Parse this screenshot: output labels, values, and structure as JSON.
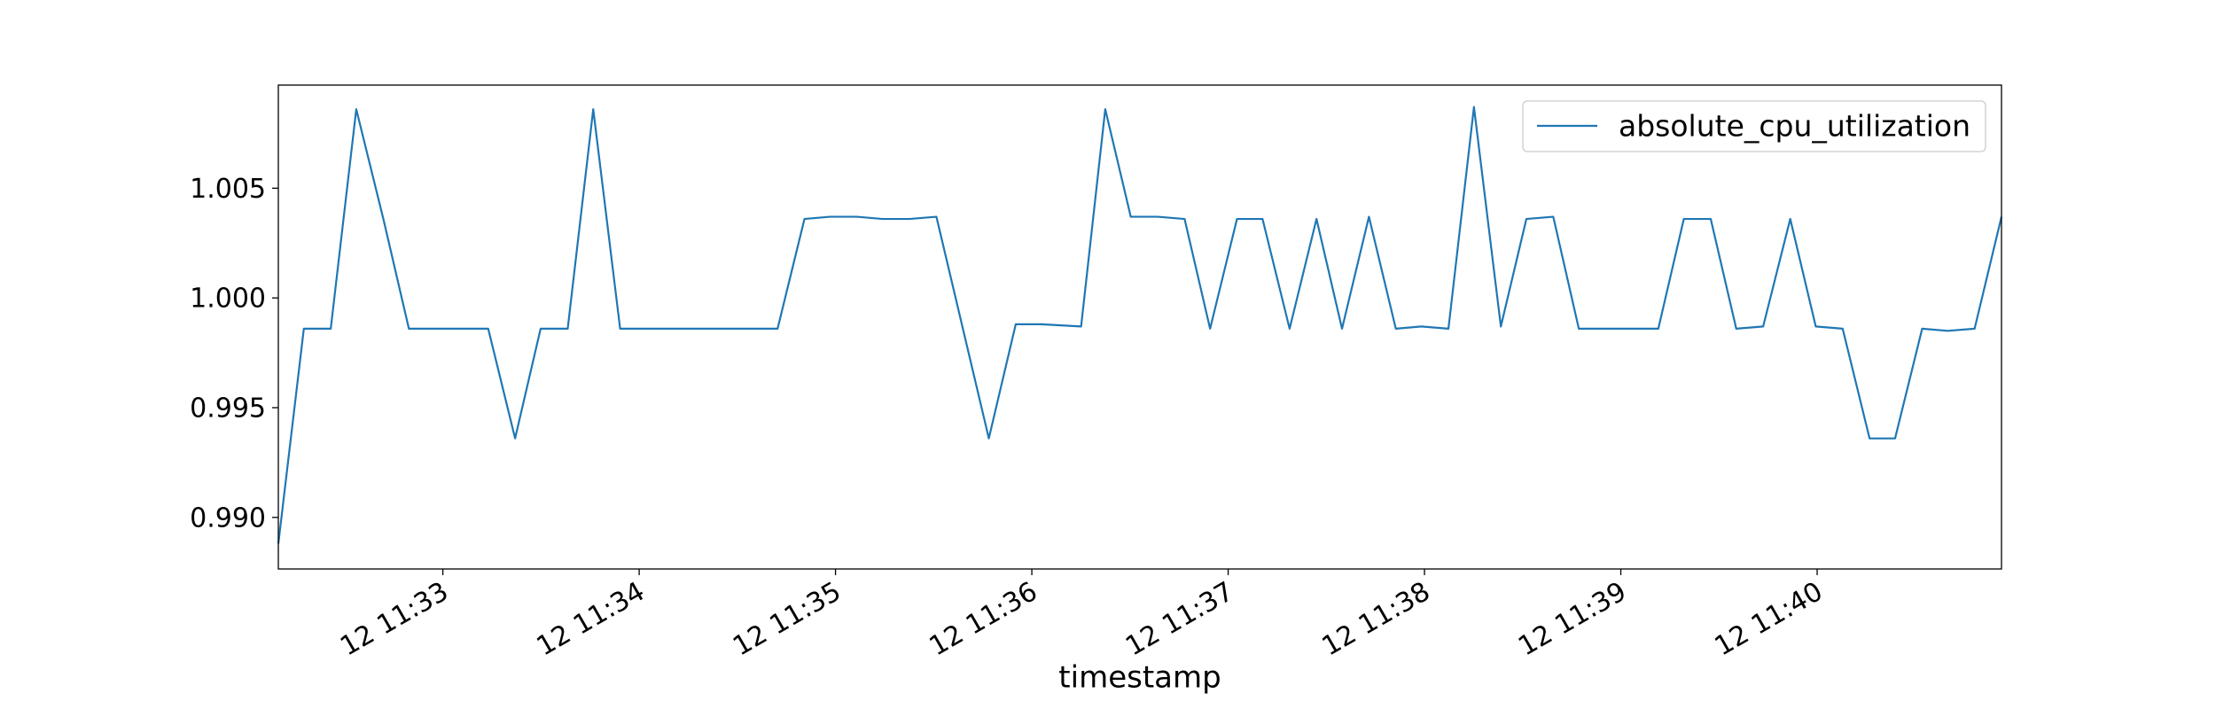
{
  "chart_data": {
    "type": "line",
    "xlabel": "timestamp",
    "x": [
      692.162,
      692.292,
      692.429,
      692.559,
      692.697,
      692.827,
      692.964,
      693.101,
      693.231,
      693.368,
      693.498,
      693.636,
      693.766,
      693.903,
      694.033,
      694.17,
      694.3,
      694.438,
      694.568,
      694.705,
      694.842,
      694.972,
      695.109,
      695.239,
      695.377,
      695.514,
      695.781,
      695.918,
      696.048,
      696.251,
      696.374,
      696.504,
      696.641,
      696.778,
      696.908,
      697.045,
      697.175,
      697.313,
      697.45,
      697.58,
      697.717,
      697.854,
      697.984,
      698.122,
      698.252,
      698.389,
      698.519,
      698.656,
      698.786,
      698.924,
      699.054,
      699.191,
      699.321,
      699.458,
      699.588,
      699.725,
      699.863,
      699.993,
      700.13,
      700.267,
      700.397,
      700.535,
      700.665,
      700.802,
      700.939
    ],
    "series": [
      {
        "name": "absolute_cpu_utilization",
        "color": "#1f77b4",
        "values": [
          0.9888,
          0.9986,
          0.9986,
          1.0086,
          1.0036,
          0.9986,
          0.9986,
          0.9986,
          0.9986,
          0.9936,
          0.9986,
          0.9986,
          1.0086,
          0.9986,
          0.9986,
          0.9986,
          0.9986,
          0.9986,
          0.9986,
          0.9986,
          1.0036,
          1.0037,
          1.0037,
          1.0036,
          1.0036,
          1.0037,
          0.9936,
          0.9988,
          0.9988,
          0.9987,
          1.0086,
          1.0037,
          1.0037,
          1.0036,
          0.9986,
          1.0036,
          1.0036,
          0.9986,
          1.0036,
          0.9986,
          1.0037,
          0.9986,
          0.9987,
          0.9986,
          1.0087,
          0.9987,
          1.0036,
          1.0037,
          0.9986,
          0.9986,
          0.9986,
          0.9986,
          1.0036,
          1.0036,
          0.9986,
          0.9987,
          1.0036,
          0.9987,
          0.9986,
          0.9936,
          0.9936,
          0.9986,
          0.9985,
          0.9986,
          1.0037
        ]
      }
    ],
    "xlim": [
      692.162,
      700.939
    ],
    "xticks": [
      {
        "value": 693,
        "label": "12 11:33"
      },
      {
        "value": 694,
        "label": "12 11:34"
      },
      {
        "value": 695,
        "label": "12 11:35"
      },
      {
        "value": 696,
        "label": "12 11:36"
      },
      {
        "value": 697,
        "label": "12 11:37"
      },
      {
        "value": 698,
        "label": "12 11:38"
      },
      {
        "value": 699,
        "label": "12 11:39"
      },
      {
        "value": 700,
        "label": "12 11:40"
      }
    ],
    "ylim": [
      0.98765,
      1.0097
    ],
    "yticks": [
      {
        "value": 0.99,
        "label": "0.990"
      },
      0.995,
      {
        "value": 1.0,
        "label": "1.000"
      },
      1.005
    ],
    "legend": "upper right",
    "grid": false
  }
}
